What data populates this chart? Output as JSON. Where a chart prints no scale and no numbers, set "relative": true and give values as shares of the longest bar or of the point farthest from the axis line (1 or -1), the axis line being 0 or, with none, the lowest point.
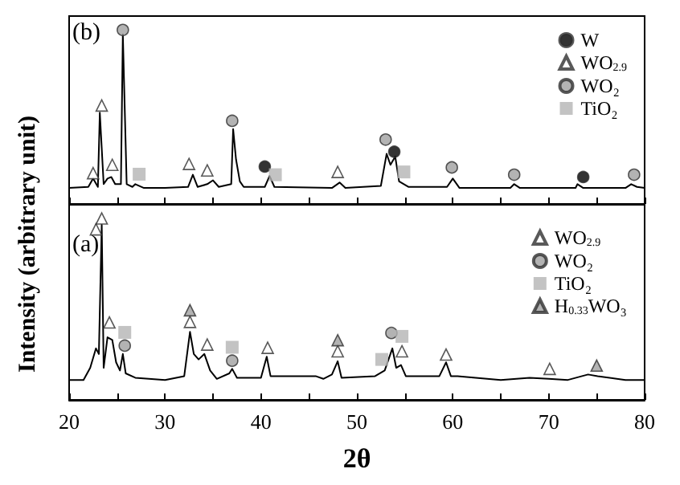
{
  "chart_data": [
    {
      "type": "line",
      "relative": true,
      "annotations": [
        "(b)"
      ],
      "xlim": [
        20,
        80
      ],
      "xticks": [
        20,
        {
          "value": 25,
          "label": null
        },
        30,
        {
          "value": 35,
          "label": null
        },
        40,
        {
          "value": 45,
          "label": null
        },
        50,
        {
          "value": 55,
          "label": null
        },
        60,
        {
          "value": 65,
          "label": null
        },
        70,
        {
          "value": 75,
          "label": null
        },
        80
      ],
      "tick_labels": false,
      "grid": false,
      "legend": "top right",
      "series": [
        {
          "color": "#000000",
          "x": [
            20,
            22.0,
            22.5,
            23.0,
            23.2,
            23.6,
            24.0,
            24.4,
            24.8,
            25.4,
            25.6,
            26.0,
            26.6,
            26.9,
            27.8,
            30,
            32.4,
            32.9,
            33.4,
            34.4,
            35.0,
            35.6,
            36.9,
            37.1,
            37.4,
            37.8,
            38.2,
            40.4,
            40.9,
            41.4,
            47.4,
            48.2,
            48.8,
            52.5,
            53.1,
            53.5,
            54.0,
            54.4,
            55.4,
            59.4,
            60.0,
            60.7,
            66.0,
            66.4,
            67.0,
            72.8,
            73.0,
            73.6,
            78.0,
            78.6,
            79.2,
            80
          ],
          "values": [
            0.092,
            0.098,
            0.146,
            0.098,
            0.525,
            0.114,
            0.146,
            0.155,
            0.114,
            0.114,
            0.975,
            0.114,
            0.098,
            0.114,
            0.092,
            0.092,
            0.098,
            0.168,
            0.098,
            0.114,
            0.136,
            0.098,
            0.114,
            0.43,
            0.256,
            0.13,
            0.098,
            0.098,
            0.161,
            0.098,
            0.092,
            0.123,
            0.092,
            0.104,
            0.288,
            0.225,
            0.272,
            0.13,
            0.098,
            0.098,
            0.146,
            0.092,
            0.092,
            0.114,
            0.092,
            0.092,
            0.114,
            0.092,
            0.092,
            0.114,
            0.098,
            0.092
          ]
        },
        {
          "type": "scatter",
          "name": "W",
          "color": "#000000",
          "marker": "circle",
          "x": [
            40.4,
            53.9,
            73.6
          ],
          "values": [
            0.215,
            0.3,
            0.155
          ]
        },
        {
          "type": "scatter",
          "name": "WO$_{2.9}$",
          "color": "#ffffff",
          "marker": "triangle",
          "x": [
            22.5,
            23.4,
            24.5,
            32.5,
            34.4,
            48.0
          ],
          "values": [
            0.177,
            0.566,
            0.225,
            0.23,
            0.193,
            0.184
          ]
        },
        {
          "type": "scatter",
          "name": "WO₂",
          "color": "#a0a0a0",
          "marker": "circle",
          "x": [
            25.6,
            37.0,
            53.0,
            59.9,
            66.4,
            78.9
          ],
          "values": [
            1.0,
            0.478,
            0.37,
            0.21,
            0.168,
            0.168
          ]
        },
        {
          "type": "scatter",
          "name": "TiO₂",
          "color": "#b4b4b4",
          "marker": "square",
          "x": [
            27.3,
            41.5,
            54.9
          ],
          "values": [
            0.171,
            0.168,
            0.184
          ]
        }
      ]
    },
    {
      "type": "line",
      "relative": true,
      "annotations": [
        "(a)"
      ],
      "xlim": [
        20,
        80
      ],
      "xlabel": "2θ",
      "ylabel": "Intensity (arbitrary unit)",
      "xticks": [
        20,
        {
          "value": 25,
          "label": null
        },
        30,
        {
          "value": 35,
          "label": null
        },
        40,
        {
          "value": 45,
          "label": null
        },
        50,
        {
          "value": 55,
          "label": null
        },
        60,
        {
          "value": 65,
          "label": null
        },
        70,
        {
          "value": 75,
          "label": null
        },
        80
      ],
      "grid": false,
      "legend": "top right",
      "series": [
        {
          "color": "#000000",
          "x": [
            20,
            21.5,
            22.2,
            22.8,
            23.1,
            23.4,
            23.6,
            24.0,
            24.5,
            24.9,
            25.3,
            25.6,
            25.9,
            26.9,
            30,
            32.0,
            32.6,
            33.0,
            33.5,
            34.1,
            34.7,
            35.4,
            36.7,
            37.0,
            37.5,
            40.0,
            40.6,
            41.0,
            45.7,
            46.5,
            47.4,
            48.0,
            48.4,
            51.9,
            52.9,
            53.7,
            54.1,
            54.6,
            55.1,
            58.6,
            59.3,
            59.8,
            60.5,
            65,
            68.0,
            70.0,
            72,
            74.1,
            75.1,
            78,
            80
          ],
          "values": [
            0.11,
            0.11,
            0.177,
            0.284,
            0.253,
            0.965,
            0.177,
            0.345,
            0.33,
            0.207,
            0.162,
            0.253,
            0.146,
            0.122,
            0.11,
            0.131,
            0.375,
            0.253,
            0.223,
            0.253,
            0.162,
            0.116,
            0.146,
            0.171,
            0.122,
            0.122,
            0.238,
            0.131,
            0.131,
            0.116,
            0.14,
            0.213,
            0.122,
            0.131,
            0.162,
            0.284,
            0.177,
            0.192,
            0.131,
            0.131,
            0.207,
            0.131,
            0.131,
            0.11,
            0.122,
            0.116,
            0.11,
            0.14,
            0.131,
            0.11,
            0.11
          ]
        },
        {
          "type": "scatter",
          "name": "WO$_{2.9}$",
          "color": "#ffffff",
          "marker": "triangle",
          "x": [
            22.8,
            23.4,
            24.2,
            32.6,
            34.4,
            40.7,
            48.0,
            54.7,
            59.3,
            70.1
          ],
          "values": [
            0.94,
            1.0,
            0.427,
            0.43,
            0.305,
            0.287,
            0.268,
            0.268,
            0.25,
            0.171
          ]
        },
        {
          "type": "scatter",
          "name": "WO₂",
          "color": "#a0a0a0",
          "marker": "circle",
          "x": [
            25.8,
            37.0,
            53.6
          ],
          "values": [
            0.299,
            0.216,
            0.369
          ]
        },
        {
          "type": "scatter",
          "name": "TiO₂",
          "color": "#b4b4b4",
          "marker": "square",
          "x": [
            25.8,
            37.0,
            54.7,
            52.6
          ],
          "values": [
            0.372,
            0.29,
            0.35,
            0.223
          ]
        },
        {
          "type": "scatter",
          "name": "H$_{0.33}$WO₃",
          "color": "#a0a0a0",
          "marker": "triangle",
          "x": [
            32.6,
            48.0,
            75.0
          ],
          "values": [
            0.494,
            0.329,
            0.189
          ]
        }
      ]
    }
  ]
}
